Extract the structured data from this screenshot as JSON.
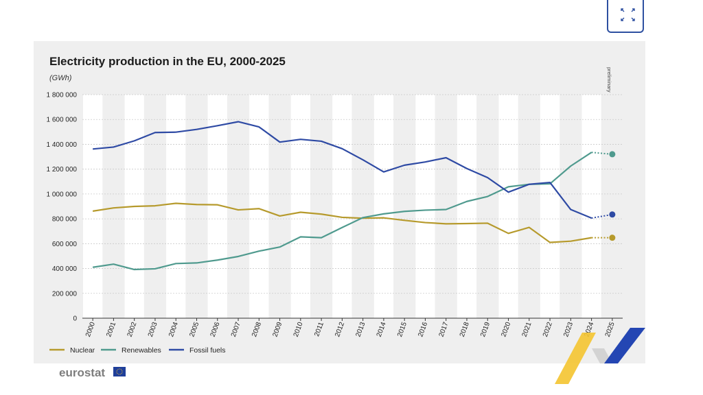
{
  "chart_data": {
    "type": "line",
    "title": "Electricity production in the EU, 2000-2025",
    "unit": "(GWh)",
    "xlabel": "",
    "ylabel": "",
    "x": [
      "2000",
      "2001",
      "2002",
      "2003",
      "2004",
      "2005",
      "2006",
      "2007",
      "2008",
      "2009",
      "2010",
      "2011",
      "2012",
      "2013",
      "2014",
      "2015",
      "2016",
      "2017",
      "2018",
      "2019",
      "2020",
      "2021",
      "2022",
      "2023",
      "2024",
      "2025"
    ],
    "ylim": [
      0,
      1800000
    ],
    "yticks": [
      0,
      200000,
      400000,
      600000,
      800000,
      1000000,
      1200000,
      1400000,
      1600000,
      1800000
    ],
    "ytick_labels": [
      "0",
      "200 000",
      "400 000",
      "600 000",
      "800 000",
      "1 000 000",
      "1 200 000",
      "1 400 000",
      "1 600 000",
      "1 800 000"
    ],
    "grid": true,
    "legend_position": "bottom-left",
    "annotation": "preliminary",
    "series": [
      {
        "name": "Nuclear",
        "color": "#b69a2c",
        "values": [
          862000,
          888000,
          900000,
          905000,
          925000,
          915000,
          913000,
          872000,
          882000,
          823000,
          853000,
          838000,
          812000,
          805000,
          808000,
          788000,
          770000,
          760000,
          762000,
          765000,
          683000,
          731000,
          610000,
          620000,
          648000,
          648000
        ]
      },
      {
        "name": "Renewables",
        "color": "#4f9a8e",
        "values": [
          410000,
          435000,
          392000,
          398000,
          440000,
          445000,
          468000,
          497000,
          540000,
          573000,
          655000,
          648000,
          730000,
          810000,
          840000,
          860000,
          870000,
          875000,
          940000,
          980000,
          1058000,
          1078000,
          1082000,
          1225000,
          1335000,
          1320000
        ]
      },
      {
        "name": "Fossil fuels",
        "color": "#2e4aa4",
        "values": [
          1362000,
          1378000,
          1428000,
          1495000,
          1498000,
          1520000,
          1550000,
          1582000,
          1540000,
          1418000,
          1440000,
          1425000,
          1365000,
          1275000,
          1178000,
          1232000,
          1258000,
          1292000,
          1205000,
          1132000,
          1015000,
          1078000,
          1093000,
          875000,
          806000,
          835000
        ]
      }
    ]
  },
  "branding": {
    "logo": "eurostat"
  },
  "colors": {
    "accent_blue": "#2d4fa0",
    "accent_yellow": "#f4c430"
  }
}
